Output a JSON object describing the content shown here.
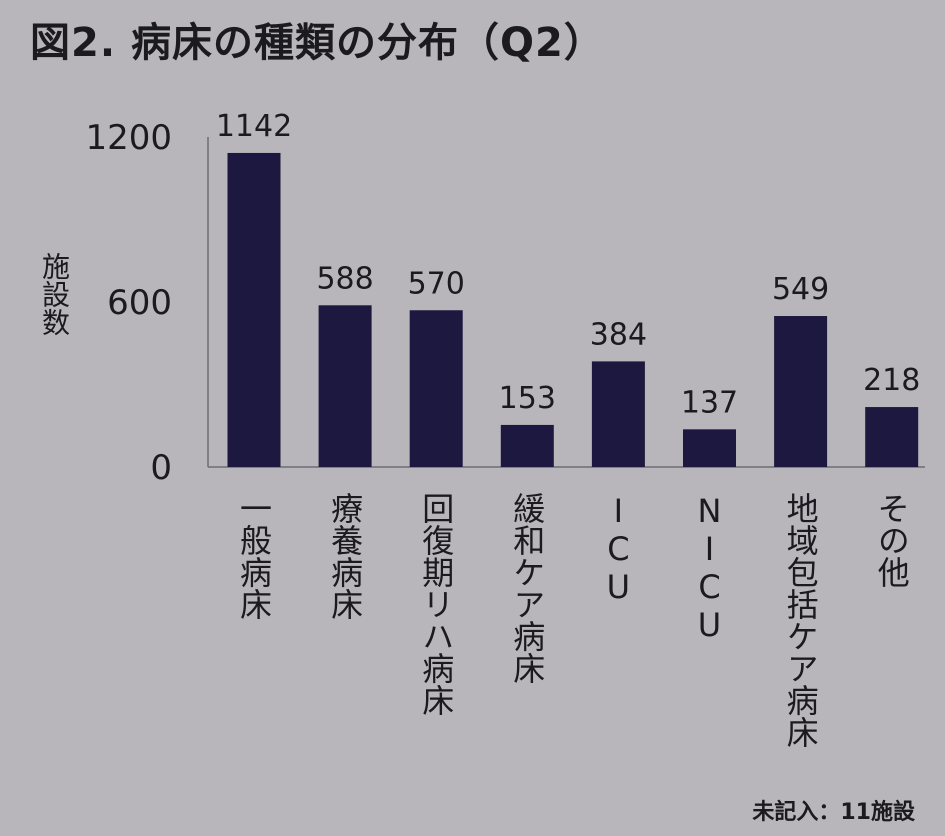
{
  "title": "図2. 病床の種類の分布（Q2）",
  "note": "未記入：11施設",
  "chart_data": {
    "type": "bar",
    "title": "図2. 病床の種類の分布（Q2）",
    "ylabel": "施設数",
    "xlabel": "",
    "ylim": [
      0,
      1200
    ],
    "yticks": [
      0,
      600,
      1200
    ],
    "categories": [
      "一般病床",
      "療養病床",
      "回復期リハ病床",
      "緩和ケア病床",
      "ICU",
      "NICU",
      "地域包括ケア病床",
      "その他"
    ],
    "values": [
      1142,
      588,
      570,
      153,
      384,
      137,
      549,
      218
    ],
    "grid": false,
    "bar_color": "#1c1840"
  }
}
